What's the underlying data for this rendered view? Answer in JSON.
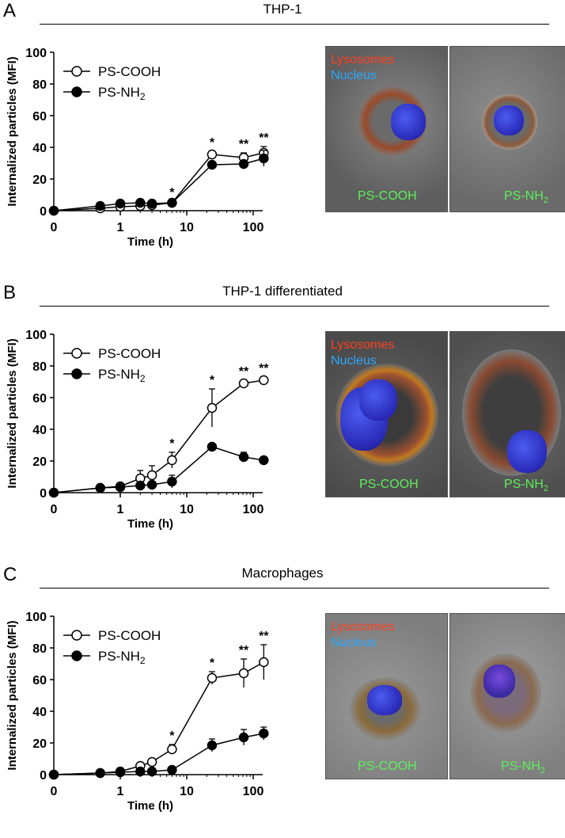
{
  "panels": [
    {
      "letter": "A",
      "title": "THP-1",
      "micro_left": {
        "lysosomes": "Lysosomes",
        "nucleus": "Nucleus",
        "particle": "PS-COOH"
      },
      "micro_right": {
        "particle_prefix": "PS-NH",
        "particle_sub": "2"
      }
    },
    {
      "letter": "B",
      "title": "THP-1 differentiated",
      "micro_left": {
        "lysosomes": "Lysosomes",
        "nucleus": "Nucleus",
        "particle": "PS-COOH"
      },
      "micro_right": {
        "particle_prefix": "PS-NH",
        "particle_sub": "2"
      }
    },
    {
      "letter": "C",
      "title": "Macrophages",
      "micro_left": {
        "lysosomes": "Lysosomes",
        "nucleus": "Nucleus",
        "particle": "PS-COOH"
      },
      "micro_right": {
        "particle_prefix": "PS-NH",
        "particle_sub": "2"
      }
    }
  ],
  "chart_data": [
    {
      "type": "line",
      "xlabel": "Time (h)",
      "ylabel": "Internalized particles (MFI)",
      "ylim": [
        0,
        100
      ],
      "yticks": [
        0,
        20,
        40,
        60,
        80,
        100
      ],
      "xticks": [
        "0",
        "1",
        "10",
        "100"
      ],
      "x": [
        0,
        0.5,
        1,
        2,
        3,
        6,
        24,
        72,
        144
      ],
      "legend_position": "top-left",
      "series": [
        {
          "name": "PS-COOH",
          "marker": "open-circle",
          "values": [
            0,
            1.5,
            2.5,
            3,
            3.5,
            5,
            35.5,
            33.5,
            36.5
          ],
          "errors": [
            0,
            0.5,
            0.5,
            0.5,
            0.5,
            1,
            2,
            3,
            4
          ]
        },
        {
          "name": "PS-NH2",
          "marker": "filled-circle",
          "values": [
            0,
            3,
            4.5,
            5,
            4.5,
            5,
            29,
            29.5,
            33
          ],
          "errors": [
            0,
            0.5,
            0.5,
            0.5,
            0.5,
            1,
            1.5,
            1.5,
            5
          ]
        }
      ],
      "annotations": [
        {
          "x": 6,
          "text": "*"
        },
        {
          "x": 24,
          "text": "*"
        },
        {
          "x": 72,
          "text": "**"
        },
        {
          "x": 144,
          "text": "**"
        }
      ]
    },
    {
      "type": "line",
      "xlabel": "Time (h)",
      "ylabel": "Internalized particles (MFI)",
      "ylim": [
        0,
        100
      ],
      "yticks": [
        0,
        20,
        40,
        60,
        80,
        100
      ],
      "xticks": [
        "0",
        "1",
        "10",
        "100"
      ],
      "x": [
        0,
        0.5,
        1,
        2,
        3,
        6,
        24,
        72,
        144
      ],
      "legend_position": "top-left",
      "series": [
        {
          "name": "PS-COOH",
          "marker": "open-circle",
          "values": [
            0,
            3,
            4,
            9,
            11,
            20.5,
            53.5,
            69,
            71
          ],
          "errors": [
            0,
            0.5,
            1,
            5,
            6,
            5,
            12,
            2,
            2
          ]
        },
        {
          "name": "PS-NH2",
          "marker": "filled-circle",
          "values": [
            0,
            3,
            3.5,
            4.5,
            5,
            7,
            29,
            22.5,
            20.5
          ],
          "errors": [
            0,
            0.5,
            0.5,
            1,
            1,
            4,
            1,
            3,
            1
          ]
        }
      ],
      "annotations": [
        {
          "x": 6,
          "text": "*"
        },
        {
          "x": 24,
          "text": "*"
        },
        {
          "x": 72,
          "text": "**"
        },
        {
          "x": 144,
          "text": "**"
        }
      ]
    },
    {
      "type": "line",
      "xlabel": "Time (h)",
      "ylabel": "Internalized particles (MFI)",
      "ylim": [
        0,
        100
      ],
      "yticks": [
        0,
        20,
        40,
        60,
        80,
        100
      ],
      "xticks": [
        "0",
        "1",
        "10",
        "100"
      ],
      "x": [
        0,
        0.5,
        1,
        2,
        3,
        6,
        24,
        72,
        144
      ],
      "legend_position": "top-left",
      "series": [
        {
          "name": "PS-COOH",
          "marker": "open-circle",
          "values": [
            0,
            1,
            2,
            5.5,
            8,
            16,
            61,
            64,
            71
          ],
          "errors": [
            0,
            0.5,
            0.5,
            1,
            1.5,
            3,
            4,
            9,
            11
          ]
        },
        {
          "name": "PS-NH2",
          "marker": "filled-circle",
          "values": [
            0,
            1,
            1.5,
            2,
            2,
            3,
            18.5,
            23.5,
            26
          ],
          "errors": [
            0,
            0.5,
            0.5,
            0.5,
            0.5,
            0.5,
            4,
            5,
            4
          ]
        }
      ],
      "annotations": [
        {
          "x": 6,
          "text": "*"
        },
        {
          "x": 24,
          "text": "*"
        },
        {
          "x": 72,
          "text": "**"
        },
        {
          "x": 144,
          "text": "**"
        }
      ]
    }
  ]
}
